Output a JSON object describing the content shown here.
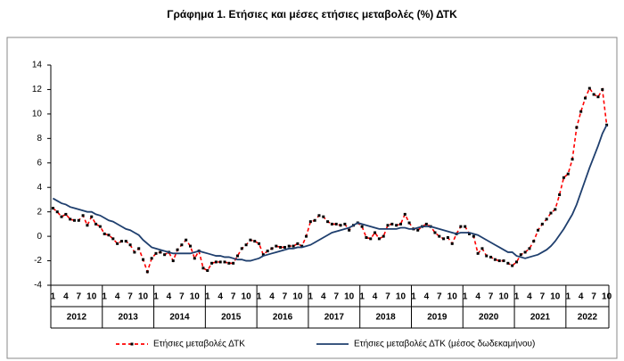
{
  "chart_data": {
    "type": "line",
    "title": "Γράφημα 1. Ετήσιες και μέσες ετήσιες μεταβολές (%) ΔΤΚ",
    "categories": [
      "1",
      null,
      null,
      "4",
      null,
      null,
      "7",
      null,
      null,
      "10",
      null,
      null,
      "1",
      null,
      null,
      "4",
      null,
      null,
      "7",
      null,
      null,
      "10",
      null,
      null,
      "1",
      null,
      null,
      "4",
      null,
      null,
      "7",
      null,
      null,
      "10",
      null,
      null,
      "1",
      null,
      null,
      "4",
      null,
      null,
      "7",
      null,
      null,
      "10",
      null,
      null,
      "1",
      null,
      null,
      "4",
      null,
      null,
      "7",
      null,
      null,
      "10",
      null,
      null,
      "1",
      null,
      null,
      "4",
      null,
      null,
      "7",
      null,
      null,
      "10",
      null,
      null,
      "1",
      null,
      null,
      "4",
      null,
      null,
      "7",
      null,
      null,
      "10",
      null,
      null,
      "1",
      null,
      null,
      "4",
      null,
      null,
      "7",
      null,
      null,
      "10",
      null,
      null,
      "1",
      null,
      null,
      "4",
      null,
      null,
      "7",
      null,
      null,
      "10",
      null,
      null,
      "1",
      null,
      null,
      "4",
      null,
      null,
      "7",
      null,
      null,
      "10",
      null,
      null,
      "1",
      null,
      null,
      "4",
      null,
      null,
      "7",
      null,
      null,
      "10"
    ],
    "years": [
      "2012",
      "2013",
      "2014",
      "2015",
      "2016",
      "2017",
      "2018",
      "2019",
      "2020",
      "2021",
      "2022"
    ],
    "series": [
      {
        "name": "Ετήσιες μεταβολές ΔΤΚ",
        "color": "#ff0000",
        "line_style": "dashed",
        "marker": "square",
        "marker_color": "#000000",
        "values": [
          2.3,
          2.0,
          1.6,
          1.8,
          1.4,
          1.3,
          1.3,
          1.7,
          0.9,
          1.6,
          1.0,
          0.8,
          0.2,
          0.1,
          -0.2,
          -0.6,
          -0.4,
          -0.4,
          -0.7,
          -1.3,
          -1.0,
          -1.9,
          -2.9,
          -1.8,
          -1.4,
          -1.3,
          -1.5,
          -1.3,
          -2.0,
          -1.1,
          -0.7,
          -0.3,
          -0.8,
          -1.8,
          -1.2,
          -2.6,
          -2.8,
          -2.2,
          -2.1,
          -2.1,
          -2.1,
          -2.2,
          -2.2,
          -1.6,
          -1.0,
          -0.7,
          -0.3,
          -0.4,
          -0.6,
          -1.5,
          -1.2,
          -1.0,
          -0.8,
          -0.9,
          -0.9,
          -0.8,
          -0.8,
          -0.6,
          -0.8,
          0.0,
          1.2,
          1.3,
          1.7,
          1.6,
          1.2,
          1.0,
          1.0,
          0.9,
          1.0,
          0.5,
          0.9,
          1.1,
          0.8,
          -0.1,
          -0.2,
          0.3,
          -0.2,
          0.0,
          0.9,
          1.0,
          0.9,
          1.0,
          1.8,
          1.1,
          0.6,
          0.5,
          0.8,
          1.0,
          0.8,
          0.3,
          0.0,
          -0.2,
          -0.1,
          -0.6,
          0.2,
          0.8,
          0.8,
          0.2,
          0.0,
          -1.4,
          -1.0,
          -1.6,
          -1.7,
          -1.9,
          -2.0,
          -2.0,
          -2.2,
          -2.4,
          -2.1,
          -1.5,
          -1.3,
          -1.0,
          -0.4,
          0.5,
          1.0,
          1.4,
          1.9,
          2.2,
          3.4,
          4.8,
          5.1,
          6.3,
          8.9,
          10.2,
          11.3,
          12.1,
          11.6,
          11.4,
          12.0,
          9.1
        ]
      },
      {
        "name": "Ετήσιες μεταβολές ΔΤΚ (μέσος δωδεκαμήνου)",
        "color": "#1f3f6e",
        "line_style": "solid",
        "values": [
          3.1,
          2.9,
          2.7,
          2.6,
          2.4,
          2.3,
          2.2,
          2.1,
          2.0,
          2.0,
          1.8,
          1.7,
          1.5,
          1.3,
          1.2,
          1.0,
          0.8,
          0.6,
          0.5,
          0.3,
          0.1,
          -0.3,
          -0.6,
          -0.9,
          -1.0,
          -1.1,
          -1.2,
          -1.3,
          -1.4,
          -1.4,
          -1.4,
          -1.4,
          -1.4,
          -1.3,
          -1.2,
          -1.3,
          -1.4,
          -1.5,
          -1.6,
          -1.6,
          -1.7,
          -1.7,
          -1.8,
          -1.9,
          -1.9,
          -2.0,
          -2.0,
          -1.9,
          -1.8,
          -1.6,
          -1.5,
          -1.4,
          -1.3,
          -1.2,
          -1.1,
          -1.0,
          -1.0,
          -0.9,
          -0.9,
          -0.8,
          -0.7,
          -0.5,
          -0.3,
          -0.1,
          0.1,
          0.3,
          0.4,
          0.5,
          0.6,
          0.7,
          0.9,
          1.1,
          1.0,
          0.9,
          0.8,
          0.7,
          0.6,
          0.6,
          0.6,
          0.6,
          0.6,
          0.7,
          0.7,
          0.6,
          0.6,
          0.7,
          0.8,
          0.8,
          0.8,
          0.7,
          0.6,
          0.5,
          0.4,
          0.3,
          0.2,
          0.3,
          0.3,
          0.3,
          0.2,
          0.1,
          -0.1,
          -0.3,
          -0.5,
          -0.7,
          -0.9,
          -1.1,
          -1.3,
          -1.3,
          -1.6,
          -1.7,
          -1.8,
          -1.7,
          -1.6,
          -1.5,
          -1.3,
          -1.1,
          -0.8,
          -0.4,
          0.1,
          0.6,
          1.2,
          1.8,
          2.6,
          3.6,
          4.6,
          5.6,
          6.5,
          7.4,
          8.4,
          9.1
        ]
      }
    ],
    "ylim": [
      -4,
      14
    ],
    "yticks": [
      -4,
      -2,
      0,
      2,
      4,
      6,
      8,
      10,
      12,
      14
    ],
    "grid": false,
    "legend": "bottom"
  }
}
